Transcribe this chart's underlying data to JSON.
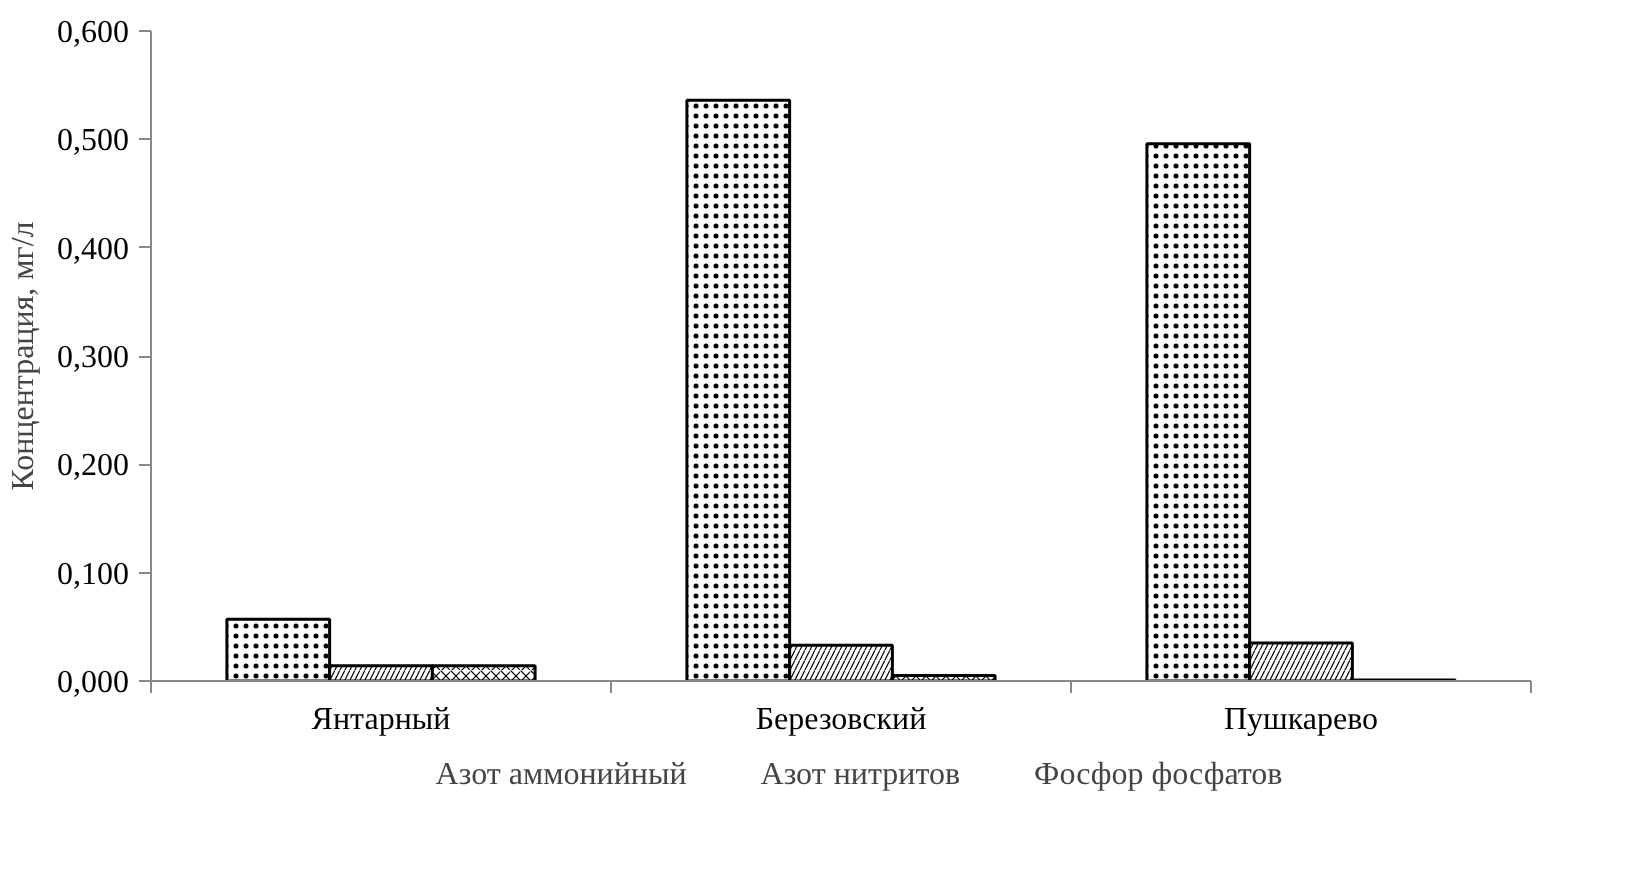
{
  "chart_data": {
    "type": "bar",
    "ylabel": "Концентрация, мг/л",
    "categories": [
      "Янтарный",
      "Березовский",
      "Пушкарево"
    ],
    "series": [
      {
        "name": "Азот аммонийный",
        "color": "#ffffff",
        "values": [
          0.057,
          0.536,
          0.496
        ]
      },
      {
        "name": "Азот нитритов",
        "color": "#ffffff",
        "values": [
          0.014,
          0.033,
          0.035
        ]
      },
      {
        "name": "Фосфор фосфатов",
        "color": "#ffffff",
        "values": [
          0.014,
          0.005,
          0.001
        ]
      }
    ],
    "ylim": [
      0,
      0.6
    ],
    "yticks": [
      {
        "value": 0,
        "label": "0,000"
      },
      {
        "value": 0.1,
        "label": "0,100"
      },
      {
        "value": 0.2,
        "label": "0,200"
      },
      {
        "value": 0.3,
        "label": "0,300"
      },
      {
        "value": 0.4,
        "label": "0,400"
      },
      {
        "value": 0.5,
        "label": "0,500"
      },
      {
        "value": 0.6,
        "label": "0,600"
      }
    ],
    "grid": false,
    "legend": "bottom"
  }
}
